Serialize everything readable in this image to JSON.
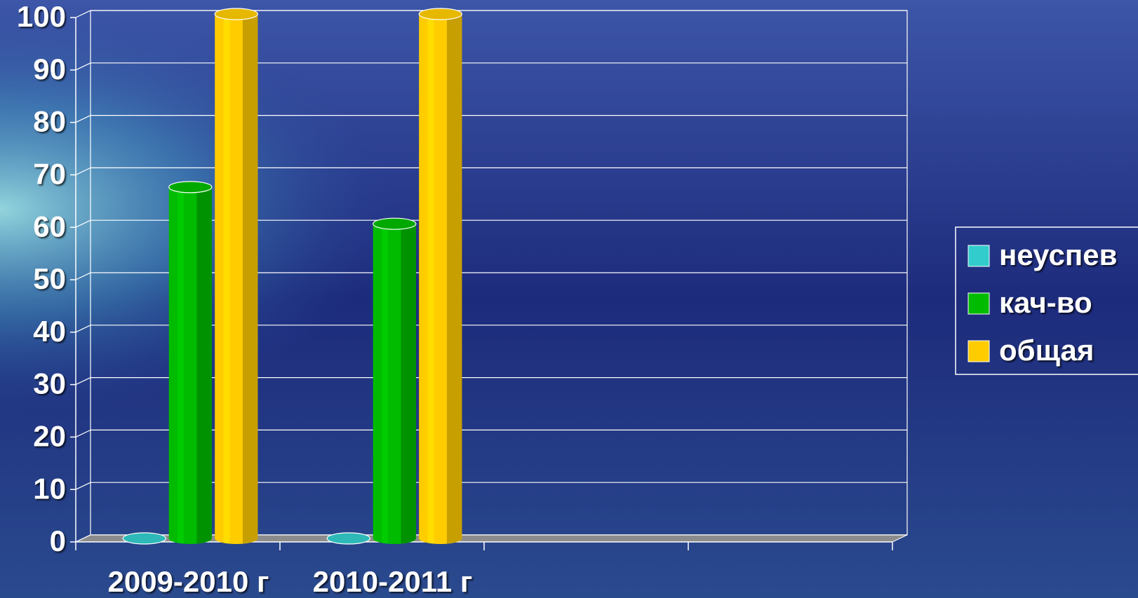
{
  "chart_data": {
    "type": "bar3d",
    "categories": [
      "2009-2010 г",
      "2010-2011 г",
      null,
      null
    ],
    "series": [
      {
        "name": "неуспев",
        "color": "#33cccc",
        "values": [
          0,
          0,
          null,
          null
        ]
      },
      {
        "name": "кач-во",
        "color": "#00bb00",
        "values": [
          67,
          60,
          null,
          null
        ]
      },
      {
        "name": "общая",
        "color": "#ffcc00",
        "values": [
          100,
          100,
          null,
          null
        ]
      }
    ],
    "ylim": [
      0,
      100
    ],
    "yticks": [
      0,
      10,
      20,
      30,
      40,
      50,
      60,
      70,
      80,
      90,
      100
    ],
    "grid": true,
    "legend": "right"
  }
}
